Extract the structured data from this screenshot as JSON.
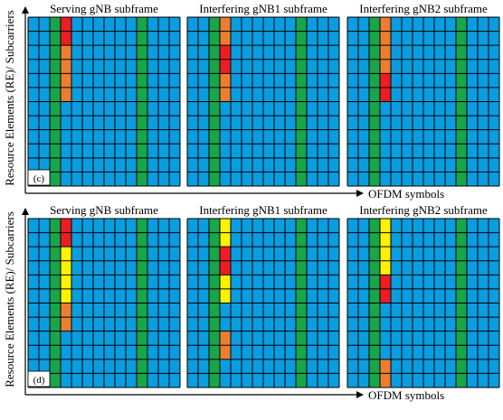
{
  "y_axis_label": "Resource Elements (RE)/ Subcarriers",
  "x_axis_label": "OFDM symbols",
  "colors": {
    "base": "#0a9de0",
    "dmrs": "#19a54a",
    "red": "#ee1c24",
    "orange": "#ee7d31",
    "yellow": "#fff200",
    "grid": "#000000"
  },
  "grid_cols": 14,
  "grid_rows": 12,
  "panels": [
    {
      "label": "(c)",
      "subframes": [
        {
          "title": "Serving gNB subframe",
          "column_colors": [
            {
              "col": 2,
              "color": "dmrs"
            },
            {
              "col": 10,
              "color": "dmrs"
            }
          ],
          "cells": [
            {
              "col": 3,
              "row": 0,
              "color": "red"
            },
            {
              "col": 3,
              "row": 1,
              "color": "red"
            },
            {
              "col": 3,
              "row": 2,
              "color": "orange"
            },
            {
              "col": 3,
              "row": 3,
              "color": "orange"
            },
            {
              "col": 3,
              "row": 4,
              "color": "orange"
            },
            {
              "col": 3,
              "row": 5,
              "color": "orange"
            }
          ]
        },
        {
          "title": "Interfering gNB1 subframe",
          "column_colors": [
            {
              "col": 2,
              "color": "dmrs"
            },
            {
              "col": 10,
              "color": "dmrs"
            }
          ],
          "cells": [
            {
              "col": 3,
              "row": 0,
              "color": "orange"
            },
            {
              "col": 3,
              "row": 1,
              "color": "orange"
            },
            {
              "col": 3,
              "row": 2,
              "color": "red"
            },
            {
              "col": 3,
              "row": 3,
              "color": "red"
            },
            {
              "col": 3,
              "row": 4,
              "color": "orange"
            },
            {
              "col": 3,
              "row": 5,
              "color": "orange"
            }
          ]
        },
        {
          "title": "Interfering gNB2 subframe",
          "column_colors": [
            {
              "col": 2,
              "color": "dmrs"
            },
            {
              "col": 10,
              "color": "dmrs"
            }
          ],
          "cells": [
            {
              "col": 3,
              "row": 0,
              "color": "orange"
            },
            {
              "col": 3,
              "row": 1,
              "color": "orange"
            },
            {
              "col": 3,
              "row": 2,
              "color": "orange"
            },
            {
              "col": 3,
              "row": 3,
              "color": "orange"
            },
            {
              "col": 3,
              "row": 4,
              "color": "red"
            },
            {
              "col": 3,
              "row": 5,
              "color": "red"
            }
          ]
        }
      ]
    },
    {
      "label": "(d)",
      "subframes": [
        {
          "title": "Serving gNB subframe",
          "column_colors": [
            {
              "col": 2,
              "color": "dmrs"
            },
            {
              "col": 10,
              "color": "dmrs"
            }
          ],
          "cells": [
            {
              "col": 3,
              "row": 0,
              "color": "red"
            },
            {
              "col": 3,
              "row": 1,
              "color": "red"
            },
            {
              "col": 3,
              "row": 2,
              "color": "yellow"
            },
            {
              "col": 3,
              "row": 3,
              "color": "yellow"
            },
            {
              "col": 3,
              "row": 4,
              "color": "yellow"
            },
            {
              "col": 3,
              "row": 5,
              "color": "yellow"
            },
            {
              "col": 3,
              "row": 6,
              "color": "orange"
            },
            {
              "col": 3,
              "row": 7,
              "color": "orange"
            }
          ]
        },
        {
          "title": "Interfering gNB1 subframe",
          "column_colors": [
            {
              "col": 2,
              "color": "dmrs"
            },
            {
              "col": 10,
              "color": "dmrs"
            }
          ],
          "cells": [
            {
              "col": 3,
              "row": 0,
              "color": "yellow"
            },
            {
              "col": 3,
              "row": 1,
              "color": "yellow"
            },
            {
              "col": 3,
              "row": 2,
              "color": "red"
            },
            {
              "col": 3,
              "row": 3,
              "color": "red"
            },
            {
              "col": 3,
              "row": 4,
              "color": "yellow"
            },
            {
              "col": 3,
              "row": 5,
              "color": "yellow"
            },
            {
              "col": 3,
              "row": 8,
              "color": "orange"
            },
            {
              "col": 3,
              "row": 9,
              "color": "orange"
            }
          ]
        },
        {
          "title": "Interfering gNB2 subframe",
          "column_colors": [
            {
              "col": 2,
              "color": "dmrs"
            },
            {
              "col": 10,
              "color": "dmrs"
            }
          ],
          "cells": [
            {
              "col": 3,
              "row": 0,
              "color": "yellow"
            },
            {
              "col": 3,
              "row": 1,
              "color": "yellow"
            },
            {
              "col": 3,
              "row": 2,
              "color": "yellow"
            },
            {
              "col": 3,
              "row": 3,
              "color": "yellow"
            },
            {
              "col": 3,
              "row": 4,
              "color": "red"
            },
            {
              "col": 3,
              "row": 5,
              "color": "red"
            },
            {
              "col": 3,
              "row": 10,
              "color": "orange"
            },
            {
              "col": 3,
              "row": 11,
              "color": "orange"
            }
          ]
        }
      ]
    }
  ]
}
